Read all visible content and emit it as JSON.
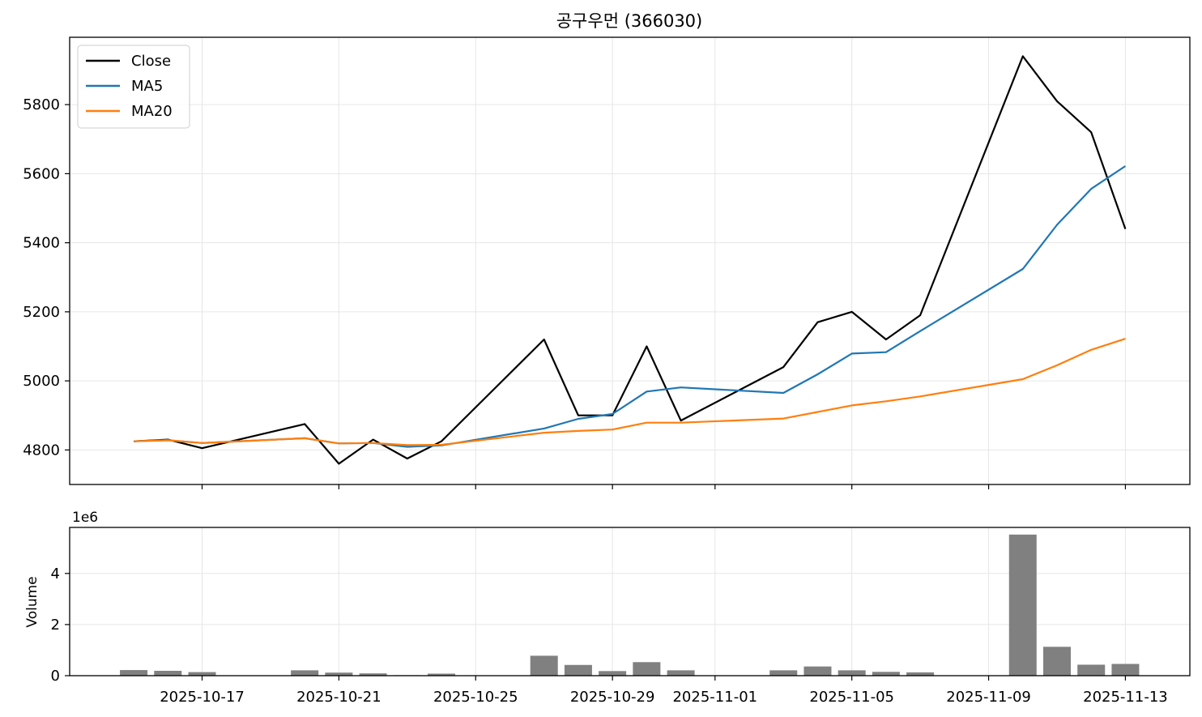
{
  "chart_data": [
    {
      "type": "line",
      "title": "공구우먼 (366030)",
      "y_ticks": [
        4800,
        5000,
        5200,
        5400,
        5600,
        5800
      ],
      "ylim": [
        4700,
        5995
      ],
      "grid": true,
      "legend_position": "top-left",
      "x": [
        "2025-10-15",
        "2025-10-16",
        "2025-10-17",
        "2025-10-20",
        "2025-10-21",
        "2025-10-22",
        "2025-10-23",
        "2025-10-24",
        "2025-10-27",
        "2025-10-28",
        "2025-10-29",
        "2025-10-30",
        "2025-10-31",
        "2025-11-03",
        "2025-11-04",
        "2025-11-05",
        "2025-11-06",
        "2025-11-07",
        "2025-11-10",
        "2025-11-11",
        "2025-11-12",
        "2025-11-13"
      ],
      "series": [
        {
          "name": "Close",
          "color": "#000000",
          "values": [
            4825,
            4830,
            4805,
            4875,
            4760,
            4830,
            4775,
            4825,
            5120,
            4900,
            4900,
            5100,
            4885,
            5040,
            5170,
            5200,
            5120,
            5190,
            5940,
            5810,
            5720,
            5440
          ]
        },
        {
          "name": "MA5",
          "color": "#1f77b4",
          "values": [
            4825,
            4828,
            4820,
            4834,
            4819,
            4820,
            4809,
            4813,
            4862,
            4890,
            4904,
            4969,
            4981,
            4965,
            5019,
            5079,
            5083,
            5144,
            5324,
            5452,
            5556,
            5622
          ]
        },
        {
          "name": "MA20",
          "color": "#ff7f0e",
          "values": [
            4825,
            4828,
            4820,
            4834,
            4819,
            4820,
            4814,
            4815,
            4850,
            4855,
            4859,
            4879,
            4879,
            4891,
            4910,
            4929,
            4941,
            4955,
            5005,
            5045,
            5090,
            5122
          ]
        }
      ]
    },
    {
      "type": "bar",
      "ylabel": "Volume",
      "offset_text": "1e6",
      "y_ticks": [
        0,
        2,
        4
      ],
      "y_scale": 1000000,
      "ylim": [
        0,
        5800000
      ],
      "grid": true,
      "bar_color": "#808080",
      "x": [
        "2025-10-15",
        "2025-10-16",
        "2025-10-17",
        "2025-10-20",
        "2025-10-21",
        "2025-10-22",
        "2025-10-23",
        "2025-10-24",
        "2025-10-27",
        "2025-10-28",
        "2025-10-29",
        "2025-10-30",
        "2025-10-31",
        "2025-11-03",
        "2025-11-04",
        "2025-11-05",
        "2025-11-06",
        "2025-11-07",
        "2025-11-10",
        "2025-11-11",
        "2025-11-12",
        "2025-11-13"
      ],
      "values": [
        220000,
        190000,
        140000,
        210000,
        120000,
        90000,
        20000,
        80000,
        780000,
        420000,
        180000,
        530000,
        210000,
        210000,
        360000,
        210000,
        150000,
        130000,
        5520000,
        1130000,
        430000,
        460000
      ],
      "x_ticks": [
        "2025-10-17",
        "2025-10-21",
        "2025-10-25",
        "2025-10-29",
        "2025-11-01",
        "2025-11-05",
        "2025-11-09",
        "2025-11-13"
      ]
    }
  ]
}
